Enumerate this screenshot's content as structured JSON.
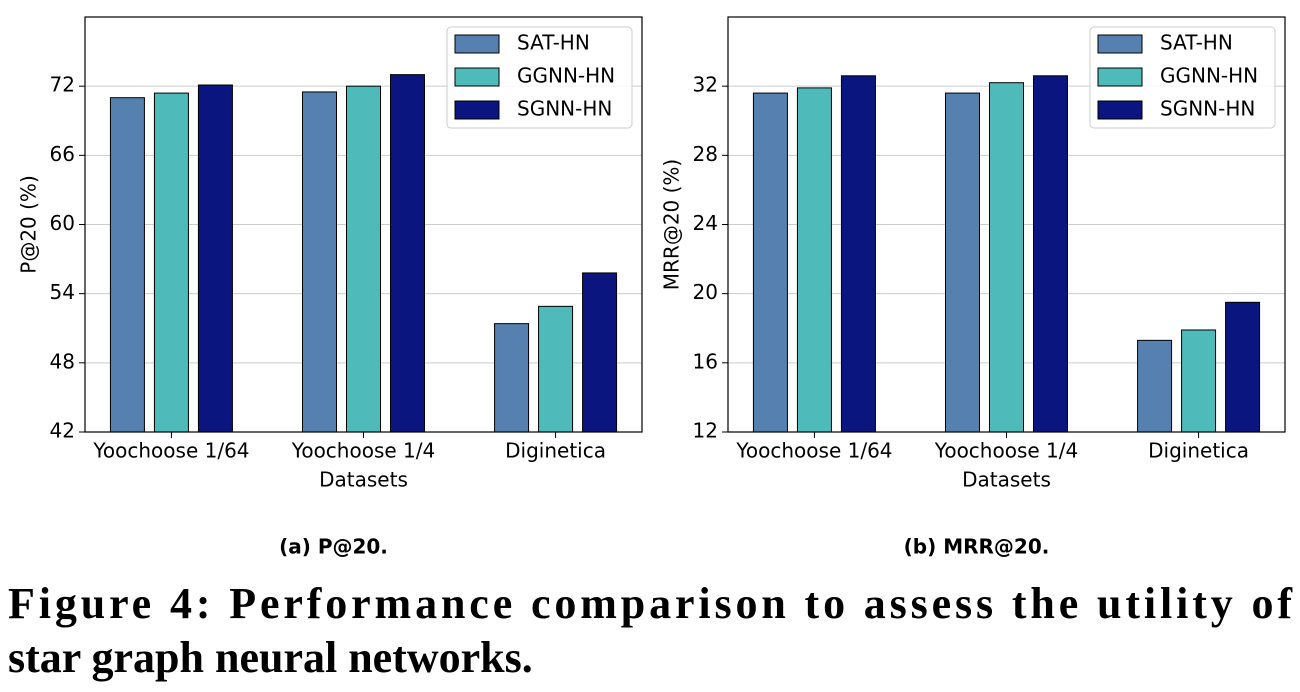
{
  "chart_data": [
    {
      "type": "bar",
      "caption": "(a) P@20.",
      "xlabel": "Datasets",
      "ylabel": "P@20 (%)",
      "categories": [
        "Yoochoose 1/64",
        "Yoochoose 1/4",
        "Diginetica"
      ],
      "series": [
        {
          "name": "SAT-HN",
          "color": "#5580b0",
          "values": [
            71.0,
            71.5,
            51.4
          ]
        },
        {
          "name": "GGNN-HN",
          "color": "#4fbaba",
          "values": [
            71.4,
            72.0,
            52.9
          ]
        },
        {
          "name": "SGNN-HN",
          "color": "#0a1580",
          "values": [
            72.1,
            73.0,
            55.8
          ]
        }
      ],
      "ylim": [
        42,
        78
      ],
      "yticks": [
        42,
        48,
        54,
        60,
        66,
        72
      ],
      "grid": true,
      "legend": "upper right"
    },
    {
      "type": "bar",
      "caption": "(b) MRR@20.",
      "xlabel": "Datasets",
      "ylabel": "MRR@20 (%)",
      "categories": [
        "Yoochoose 1/64",
        "Yoochoose 1/4",
        "Diginetica"
      ],
      "series": [
        {
          "name": "SAT-HN",
          "color": "#5580b0",
          "values": [
            31.6,
            31.6,
            17.3
          ]
        },
        {
          "name": "GGNN-HN",
          "color": "#4fbaba",
          "values": [
            31.9,
            32.2,
            17.9
          ]
        },
        {
          "name": "SGNN-HN",
          "color": "#0a1580",
          "values": [
            32.6,
            32.6,
            19.5
          ]
        }
      ],
      "ylim": [
        12,
        36
      ],
      "yticks": [
        12,
        16,
        20,
        24,
        28,
        32
      ],
      "grid": true,
      "legend": "upper right"
    }
  ],
  "figure_caption": [
    "Figure 4: Performance comparison to assess the utility of",
    "star graph neural networks."
  ]
}
